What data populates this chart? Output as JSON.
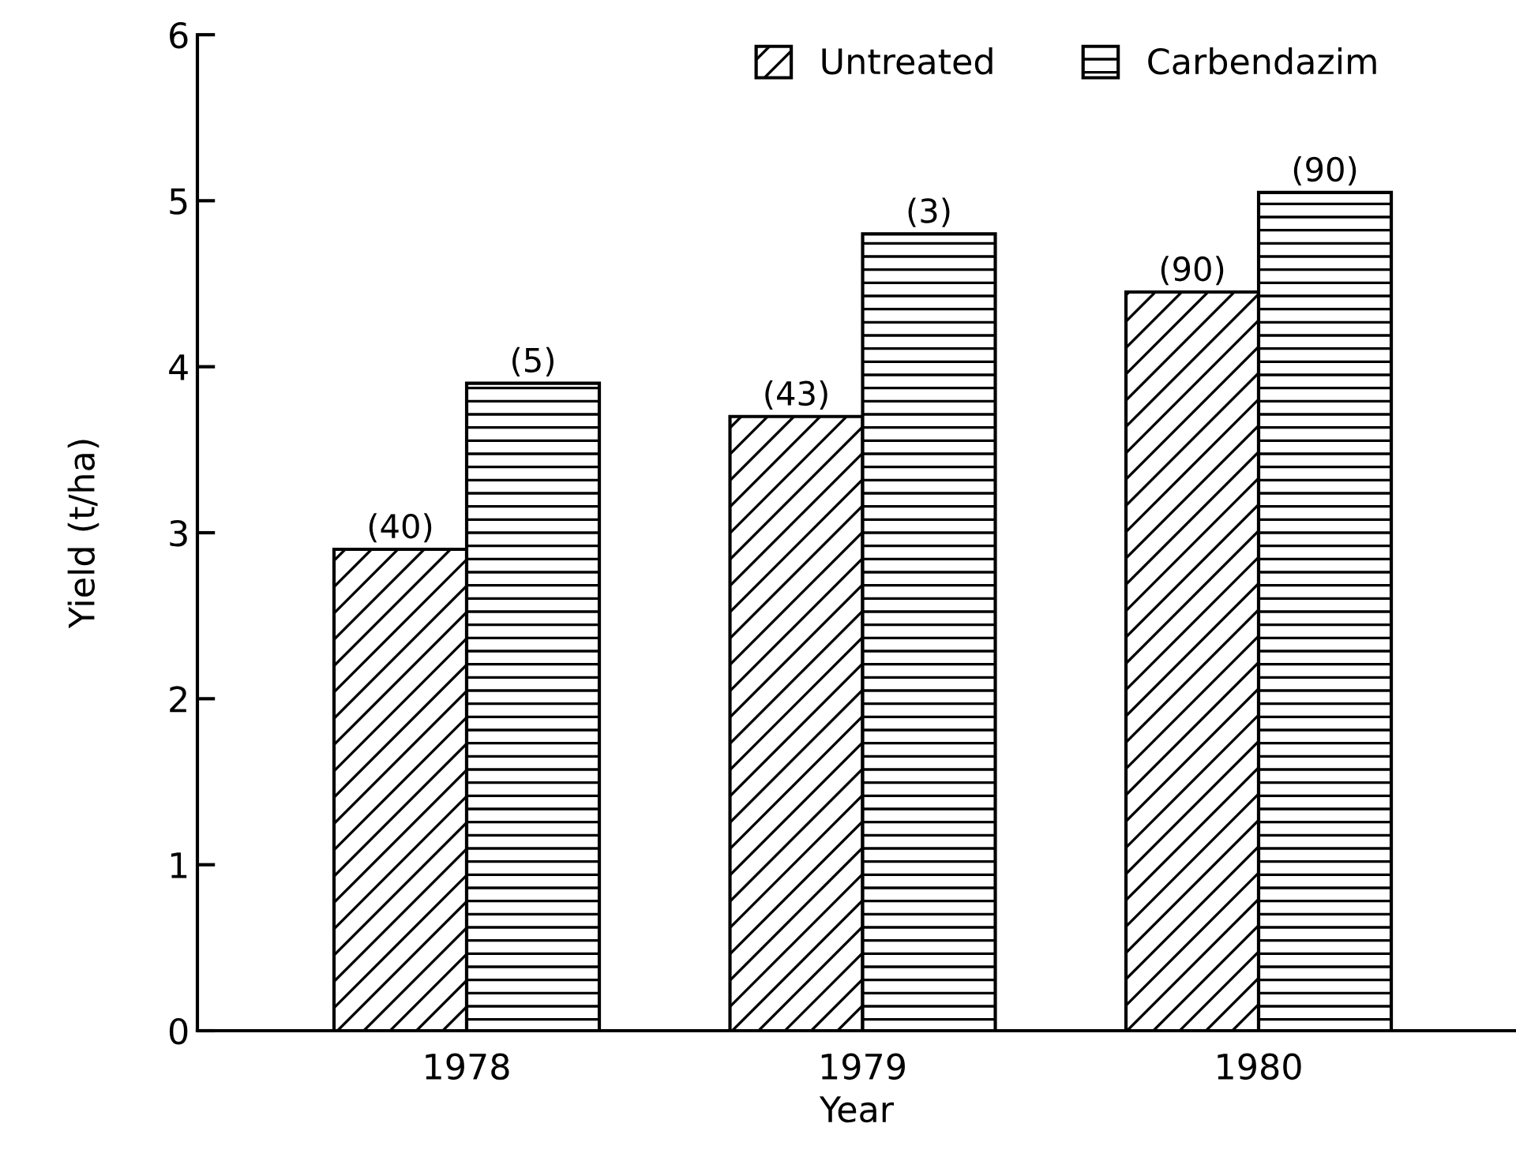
{
  "chart_data": {
    "type": "bar",
    "xlabel": "Year",
    "ylabel": "Yield (t/ha)",
    "categories": [
      "1978",
      "1979",
      "1980"
    ],
    "series": [
      {
        "name": "Untreated",
        "color": "#000000",
        "values": [
          2.9,
          3.7,
          4.45
        ]
      },
      {
        "name": "Carbendazim",
        "color": "#000000",
        "values": [
          3.9,
          4.8,
          5.05
        ]
      }
    ],
    "annotations": [
      {
        "text": "(40)",
        "x": "1978",
        "y": 2.9
      },
      {
        "text": "(5)",
        "x": "1978",
        "y": 3.9
      },
      {
        "text": "(43)",
        "x": "1979",
        "y": 3.7
      },
      {
        "text": "(3)",
        "x": "1979",
        "y": 4.8
      },
      {
        "text": "(90)",
        "x": "1980",
        "y": 4.45
      },
      {
        "text": "(90)",
        "x": "1980",
        "y": 5.05
      }
    ],
    "ylim": [
      0,
      6
    ],
    "yticks": [
      0,
      1,
      2,
      3,
      4,
      5,
      6
    ],
    "grid": false,
    "legend": "top right"
  }
}
